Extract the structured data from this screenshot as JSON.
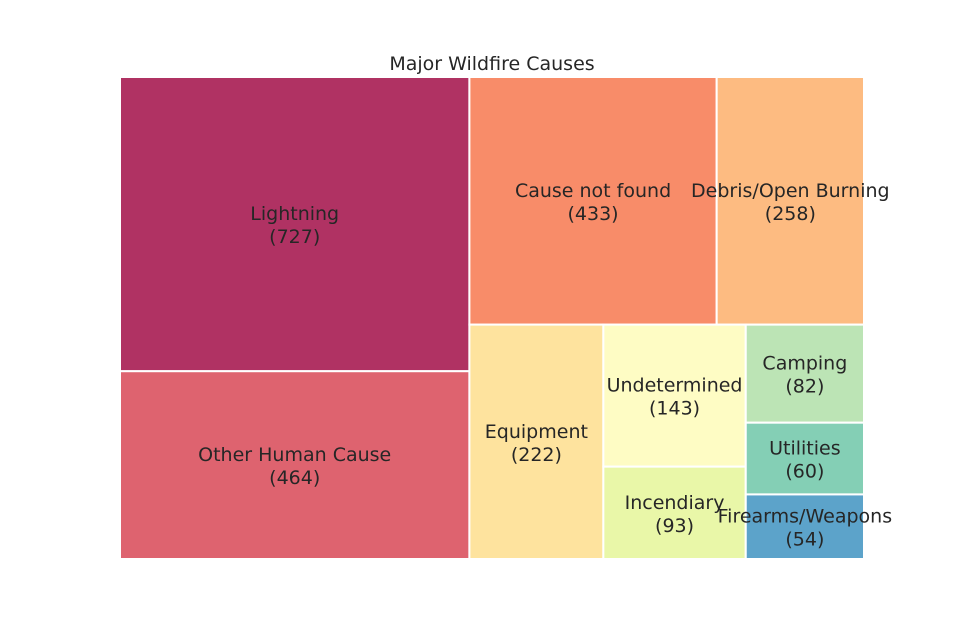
{
  "chart_data": {
    "type": "treemap",
    "title": "Major Wildfire Causes",
    "items": [
      {
        "label": "Lightning",
        "value": 727,
        "color": "#b03263"
      },
      {
        "label": "Other Human Cause",
        "value": 464,
        "color": "#de636f"
      },
      {
        "label": "Cause not found",
        "value": 433,
        "color": "#f88c69"
      },
      {
        "label": "Debris/Open Burning",
        "value": 258,
        "color": "#fdbb81"
      },
      {
        "label": "Equipment",
        "value": 222,
        "color": "#fee39e"
      },
      {
        "label": "Undetermined",
        "value": 143,
        "color": "#fefcc4"
      },
      {
        "label": "Incendiary",
        "value": 93,
        "color": "#e9f7a8"
      },
      {
        "label": "Camping",
        "value": 82,
        "color": "#bce4b5"
      },
      {
        "label": "Utilities",
        "value": 60,
        "color": "#84cfb5"
      },
      {
        "label": "Firearms/Weapons",
        "value": 54,
        "color": "#5ca3ca"
      }
    ]
  }
}
